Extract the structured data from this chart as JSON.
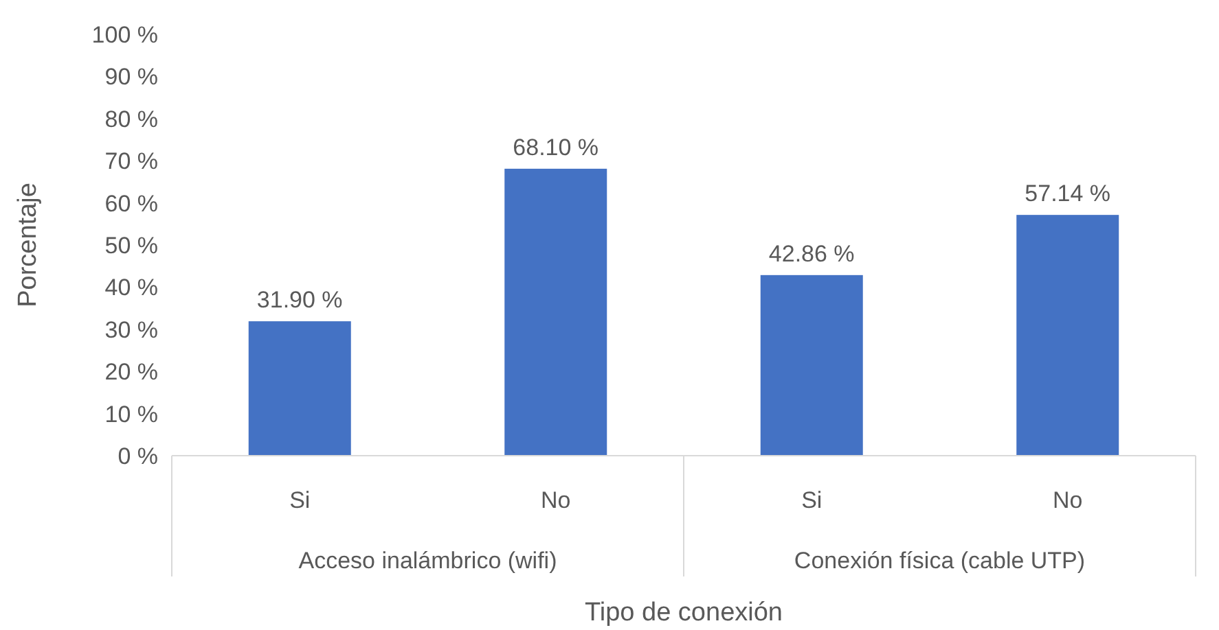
{
  "chart_data": {
    "type": "bar",
    "xlabel": "Tipo de conexión",
    "ylabel": "Porcentaje",
    "categories": [
      "Si",
      "No",
      "Si",
      "No"
    ],
    "values": [
      31.9,
      68.1,
      42.86,
      57.14
    ],
    "value_labels": [
      "31.90 %",
      "68.10 %",
      "42.86 %",
      "57.14 %"
    ],
    "color": "#4472c4",
    "ylim": [
      0,
      100
    ],
    "yticks": [
      {
        "value": 0,
        "label": "0 %"
      },
      {
        "value": 10,
        "label": "10 %"
      },
      {
        "value": 20,
        "label": "20 %"
      },
      {
        "value": 30,
        "label": "30 %"
      },
      {
        "value": 40,
        "label": "40 %"
      },
      {
        "value": 50,
        "label": "50 %"
      },
      {
        "value": 60,
        "label": "60 %"
      },
      {
        "value": 70,
        "label": "70 %"
      },
      {
        "value": 80,
        "label": "80 %"
      },
      {
        "value": 90,
        "label": "90 %"
      },
      {
        "value": 100,
        "label": "100 %"
      }
    ],
    "annotations": [
      "Acceso inalámbrico (wifi)",
      "Conexión física (cable UTP)"
    ],
    "grid": false
  }
}
